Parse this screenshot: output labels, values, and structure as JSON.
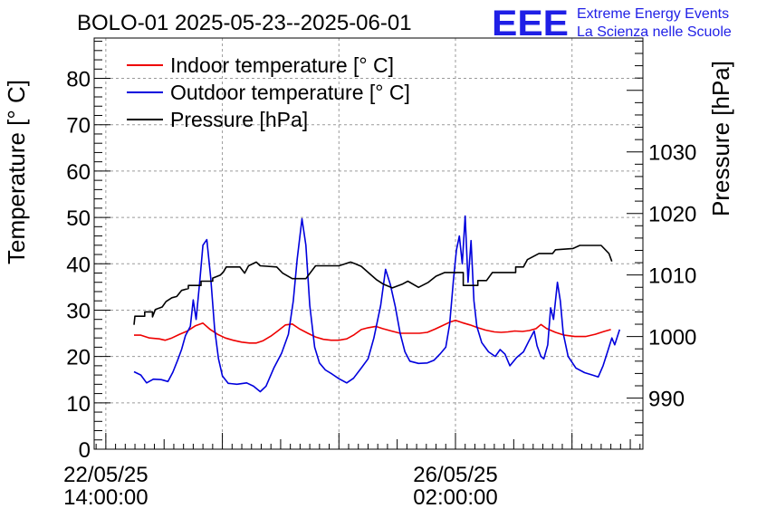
{
  "header": {
    "title": "BOLO-01 2025-05-23--2025-06-01",
    "logo_text": "EEE",
    "logo_line1": "Extreme Energy Events",
    "logo_line2": "La Scienza nelle Scuole",
    "logo_color": "#1f1fe6"
  },
  "chart_data": {
    "type": "line",
    "title": "BOLO-01 2025-05-23--2025-06-01",
    "ylabel": "Temperature [° C]",
    "y2label": "Pressure [hPa]",
    "xlabel": "",
    "ylim": [
      0,
      88.7
    ],
    "y2lim": [
      981.7,
      1048.5
    ],
    "x_unit": "hours since 22/05/25 14:00:00",
    "xlim": [
      -1.2,
      55.3
    ],
    "grid": true,
    "legend_position": "top-left",
    "x_ticks": [
      {
        "x": 0,
        "date": "22/05/25",
        "time": "14:00:00"
      },
      {
        "x": 36,
        "date": "26/05/25",
        "time": "02:00:00"
      }
    ],
    "y_ticks": [
      0,
      10,
      20,
      30,
      40,
      50,
      60,
      70,
      80
    ],
    "y2_ticks": [
      990,
      1000,
      1010,
      1020,
      1030
    ],
    "series": [
      {
        "name": "Indoor temperature [° C]",
        "color": "#ee0000",
        "axis": "left",
        "points": [
          [
            2.9,
            24.6
          ],
          [
            3.6,
            24.6
          ],
          [
            4.5,
            24.0
          ],
          [
            5.5,
            23.8
          ],
          [
            6.1,
            23.5
          ],
          [
            6.8,
            24.0
          ],
          [
            7.6,
            24.8
          ],
          [
            8.4,
            25.5
          ],
          [
            9.2,
            26.6
          ],
          [
            10.0,
            27.2
          ],
          [
            10.7,
            25.9
          ],
          [
            11.5,
            24.8
          ],
          [
            12.3,
            24.0
          ],
          [
            13.1,
            23.5
          ],
          [
            14.0,
            23.1
          ],
          [
            14.8,
            22.9
          ],
          [
            15.5,
            22.9
          ],
          [
            16.2,
            23.4
          ],
          [
            17.0,
            24.4
          ],
          [
            17.7,
            25.5
          ],
          [
            18.5,
            26.8
          ],
          [
            19.2,
            27.0
          ],
          [
            19.9,
            26.0
          ],
          [
            20.8,
            25.0
          ],
          [
            21.6,
            24.2
          ],
          [
            22.4,
            23.7
          ],
          [
            23.2,
            23.5
          ],
          [
            24.0,
            23.5
          ],
          [
            24.8,
            23.8
          ],
          [
            25.5,
            24.6
          ],
          [
            26.3,
            25.8
          ],
          [
            27.0,
            26.2
          ],
          [
            27.8,
            26.5
          ],
          [
            28.5,
            26.0
          ],
          [
            29.4,
            25.5
          ],
          [
            30.3,
            25.0
          ],
          [
            31.3,
            25.0
          ],
          [
            32.3,
            25.0
          ],
          [
            33.1,
            25.2
          ],
          [
            33.9,
            25.9
          ],
          [
            34.6,
            26.6
          ],
          [
            35.4,
            27.4
          ],
          [
            36.0,
            27.8
          ],
          [
            36.7,
            27.3
          ],
          [
            37.5,
            26.8
          ],
          [
            38.3,
            26.2
          ],
          [
            39.1,
            25.7
          ],
          [
            40.0,
            25.3
          ],
          [
            40.7,
            25.2
          ],
          [
            41.4,
            25.3
          ],
          [
            42.1,
            25.5
          ],
          [
            42.9,
            25.4
          ],
          [
            43.6,
            25.6
          ],
          [
            44.3,
            26.0
          ],
          [
            44.8,
            26.9
          ],
          [
            45.4,
            26.0
          ],
          [
            46.3,
            25.2
          ],
          [
            47.2,
            24.6
          ],
          [
            48.3,
            24.3
          ],
          [
            49.4,
            24.3
          ],
          [
            50.4,
            24.8
          ],
          [
            51.3,
            25.4
          ],
          [
            52.0,
            25.8
          ]
        ]
      },
      {
        "name": "Outdoor temperature [° C]",
        "color": "#0000dd",
        "axis": "left",
        "points": [
          [
            2.9,
            16.7
          ],
          [
            3.6,
            16.0
          ],
          [
            4.2,
            14.3
          ],
          [
            4.9,
            15.1
          ],
          [
            5.7,
            15.0
          ],
          [
            6.4,
            14.6
          ],
          [
            6.9,
            16.6
          ],
          [
            7.4,
            19.2
          ],
          [
            7.8,
            21.5
          ],
          [
            8.2,
            24.5
          ],
          [
            8.7,
            26.5
          ],
          [
            9.0,
            32.2
          ],
          [
            9.3,
            28.0
          ],
          [
            9.7,
            36.8
          ],
          [
            10.0,
            44.0
          ],
          [
            10.4,
            45.2
          ],
          [
            10.8,
            37.0
          ],
          [
            11.2,
            26.0
          ],
          [
            11.6,
            19.5
          ],
          [
            12.0,
            15.8
          ],
          [
            12.6,
            14.2
          ],
          [
            13.5,
            14.0
          ],
          [
            14.5,
            14.3
          ],
          [
            15.2,
            13.6
          ],
          [
            15.9,
            12.4
          ],
          [
            16.5,
            13.6
          ],
          [
            17.3,
            17.5
          ],
          [
            18.1,
            20.7
          ],
          [
            18.8,
            24.8
          ],
          [
            19.3,
            32.0
          ],
          [
            19.7,
            41.0
          ],
          [
            20.2,
            49.7
          ],
          [
            20.6,
            44.0
          ],
          [
            21.0,
            31.0
          ],
          [
            21.5,
            22.0
          ],
          [
            22.0,
            18.6
          ],
          [
            22.6,
            17.1
          ],
          [
            23.3,
            16.2
          ],
          [
            24.0,
            15.2
          ],
          [
            24.8,
            14.3
          ],
          [
            25.5,
            15.3
          ],
          [
            26.3,
            17.5
          ],
          [
            27.0,
            19.5
          ],
          [
            27.6,
            24.0
          ],
          [
            28.3,
            31.0
          ],
          [
            28.8,
            38.8
          ],
          [
            29.3,
            35.5
          ],
          [
            29.8,
            30.8
          ],
          [
            30.3,
            25.0
          ],
          [
            30.8,
            21.0
          ],
          [
            31.3,
            19.0
          ],
          [
            32.2,
            18.5
          ],
          [
            33.1,
            18.6
          ],
          [
            33.8,
            19.2
          ],
          [
            34.4,
            20.5
          ],
          [
            35.0,
            22.0
          ],
          [
            35.4,
            27.0
          ],
          [
            35.8,
            36.6
          ],
          [
            36.1,
            43.0
          ],
          [
            36.4,
            46.0
          ],
          [
            36.7,
            40.0
          ],
          [
            37.0,
            50.3
          ],
          [
            37.3,
            36.0
          ],
          [
            37.6,
            45.0
          ],
          [
            37.9,
            32.0
          ],
          [
            38.2,
            26.5
          ],
          [
            38.7,
            23.0
          ],
          [
            39.4,
            21.0
          ],
          [
            40.1,
            20.0
          ],
          [
            40.6,
            21.5
          ],
          [
            41.1,
            20.5
          ],
          [
            41.6,
            18.0
          ],
          [
            42.3,
            19.8
          ],
          [
            43.0,
            21.0
          ],
          [
            43.6,
            23.5
          ],
          [
            44.1,
            25.5
          ],
          [
            44.4,
            22.3
          ],
          [
            44.8,
            20.0
          ],
          [
            45.1,
            19.5
          ],
          [
            45.5,
            22.5
          ],
          [
            45.8,
            30.5
          ],
          [
            46.1,
            28.0
          ],
          [
            46.5,
            36.0
          ],
          [
            46.8,
            32.0
          ],
          [
            47.1,
            25.0
          ],
          [
            47.6,
            20.0
          ],
          [
            48.4,
            17.5
          ],
          [
            49.3,
            16.5
          ],
          [
            50.1,
            16.0
          ],
          [
            50.7,
            15.6
          ],
          [
            51.2,
            18.0
          ],
          [
            51.7,
            21.3
          ],
          [
            52.1,
            24.0
          ],
          [
            52.4,
            22.5
          ],
          [
            52.9,
            25.8
          ]
        ]
      },
      {
        "name": "Pressure [hPa]",
        "color": "#000000",
        "axis": "right",
        "points": [
          [
            2.9,
            1001.9
          ],
          [
            3.0,
            1003.3
          ],
          [
            4.0,
            1003.3
          ],
          [
            4.0,
            1004.0
          ],
          [
            4.8,
            1004.0
          ],
          [
            4.8,
            1003.2
          ],
          [
            5.1,
            1004.4
          ],
          [
            5.8,
            1004.8
          ],
          [
            6.2,
            1005.7
          ],
          [
            6.8,
            1006.3
          ],
          [
            7.3,
            1006.5
          ],
          [
            7.8,
            1007.5
          ],
          [
            8.5,
            1007.8
          ],
          [
            8.5,
            1008.3
          ],
          [
            9.8,
            1008.3
          ],
          [
            9.8,
            1009.0
          ],
          [
            11.0,
            1009.0
          ],
          [
            11.0,
            1009.5
          ],
          [
            11.8,
            1010.0
          ],
          [
            12.1,
            1010.5
          ],
          [
            12.4,
            1011.3
          ],
          [
            13.8,
            1011.3
          ],
          [
            14.3,
            1010.3
          ],
          [
            14.7,
            1011.5
          ],
          [
            15.5,
            1012.1
          ],
          [
            15.9,
            1011.5
          ],
          [
            17.6,
            1011.3
          ],
          [
            18.2,
            1010.3
          ],
          [
            19.2,
            1009.4
          ],
          [
            20.6,
            1009.4
          ],
          [
            21.6,
            1011.5
          ],
          [
            22.8,
            1011.5
          ],
          [
            24.0,
            1011.5
          ],
          [
            25.2,
            1012.1
          ],
          [
            25.7,
            1011.8
          ],
          [
            26.3,
            1011.4
          ],
          [
            27.1,
            1010.3
          ],
          [
            27.9,
            1009.2
          ],
          [
            28.6,
            1008.5
          ],
          [
            29.5,
            1007.9
          ],
          [
            30.5,
            1008.5
          ],
          [
            31.1,
            1009.0
          ],
          [
            32.2,
            1008.0
          ],
          [
            33.2,
            1008.8
          ],
          [
            34.0,
            1009.8
          ],
          [
            34.9,
            1010.4
          ],
          [
            36.8,
            1010.4
          ],
          [
            36.8,
            1008.3
          ],
          [
            38.3,
            1008.3
          ],
          [
            38.3,
            1009.1
          ],
          [
            39.2,
            1009.1
          ],
          [
            39.8,
            1010.4
          ],
          [
            42.2,
            1010.4
          ],
          [
            42.2,
            1011.3
          ],
          [
            43.0,
            1011.3
          ],
          [
            43.4,
            1012.5
          ],
          [
            44.6,
            1013.5
          ],
          [
            46.0,
            1013.5
          ],
          [
            46.3,
            1014.1
          ],
          [
            48.1,
            1014.3
          ],
          [
            48.8,
            1014.8
          ],
          [
            51.0,
            1014.8
          ],
          [
            51.8,
            1013.5
          ],
          [
            52.1,
            1012.2
          ]
        ]
      }
    ]
  }
}
